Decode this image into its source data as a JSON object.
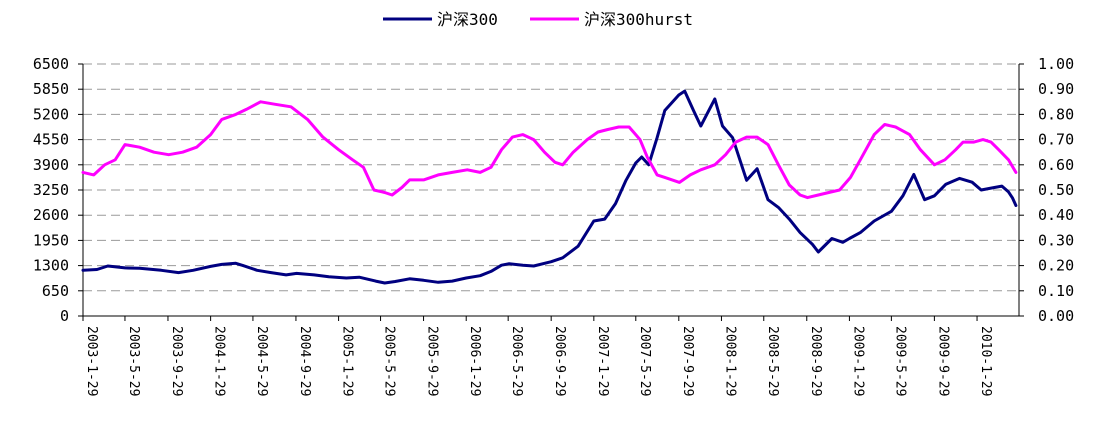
{
  "chart_data": {
    "type": "line",
    "title": "",
    "xlabel": "",
    "ylabel": "",
    "grid": true,
    "legend_position": "top-center",
    "x_tick_labels": [
      "2003-1-29",
      "2003-5-29",
      "2003-9-29",
      "2004-1-29",
      "2004-5-29",
      "2004-9-29",
      "2005-1-29",
      "2005-5-29",
      "2005-9-29",
      "2006-1-29",
      "2006-5-29",
      "2006-9-29",
      "2007-1-29",
      "2007-5-29",
      "2007-9-29",
      "2008-1-29",
      "2008-5-29",
      "2008-9-29",
      "2009-1-29",
      "2009-5-29",
      "2009-9-29",
      "2010-1-29"
    ],
    "y_left": {
      "ticks": [
        "0",
        "650",
        "1300",
        "1950",
        "2600",
        "3250",
        "3900",
        "4550",
        "5200",
        "5850",
        "6500"
      ],
      "ylim": [
        0,
        6500
      ]
    },
    "y_right": {
      "ticks": [
        "0.00",
        "0.10",
        "0.20",
        "0.30",
        "0.40",
        "0.50",
        "0.60",
        "0.70",
        "0.80",
        "0.90",
        "1.00"
      ],
      "ylim": [
        0,
        1.0
      ]
    },
    "series": [
      {
        "name": "沪深300",
        "axis": "left",
        "color": "#000080",
        "points": [
          [
            "2003-01-29",
            1180
          ],
          [
            "2003-03-10",
            1200
          ],
          [
            "2003-04-10",
            1290
          ],
          [
            "2003-05-29",
            1240
          ],
          [
            "2003-07-10",
            1230
          ],
          [
            "2003-09-10",
            1180
          ],
          [
            "2003-10-29",
            1120
          ],
          [
            "2003-12-10",
            1180
          ],
          [
            "2004-01-29",
            1280
          ],
          [
            "2004-03-01",
            1330
          ],
          [
            "2004-04-10",
            1360
          ],
          [
            "2004-05-01",
            1300
          ],
          [
            "2004-06-10",
            1180
          ],
          [
            "2004-07-20",
            1120
          ],
          [
            "2004-09-01",
            1060
          ],
          [
            "2004-10-01",
            1100
          ],
          [
            "2004-11-20",
            1060
          ],
          [
            "2005-01-01",
            1010
          ],
          [
            "2005-02-20",
            980
          ],
          [
            "2005-03-29",
            1000
          ],
          [
            "2005-05-15",
            900
          ],
          [
            "2005-06-10",
            850
          ],
          [
            "2005-07-10",
            890
          ],
          [
            "2005-08-20",
            960
          ],
          [
            "2005-09-29",
            920
          ],
          [
            "2005-11-10",
            870
          ],
          [
            "2005-12-20",
            900
          ],
          [
            "2006-01-29",
            980
          ],
          [
            "2006-03-10",
            1040
          ],
          [
            "2006-04-10",
            1150
          ],
          [
            "2006-05-10",
            1310
          ],
          [
            "2006-06-01",
            1350
          ],
          [
            "2006-07-10",
            1310
          ],
          [
            "2006-08-10",
            1290
          ],
          [
            "2006-09-29",
            1400
          ],
          [
            "2006-11-01",
            1500
          ],
          [
            "2006-12-15",
            1800
          ],
          [
            "2007-01-29",
            2450
          ],
          [
            "2007-03-01",
            2500
          ],
          [
            "2007-04-01",
            2900
          ],
          [
            "2007-05-01",
            3500
          ],
          [
            "2007-05-29",
            3950
          ],
          [
            "2007-06-15",
            4100
          ],
          [
            "2007-07-05",
            3900
          ],
          [
            "2007-07-29",
            4600
          ],
          [
            "2007-08-20",
            5300
          ],
          [
            "2007-09-29",
            5700
          ],
          [
            "2007-10-16",
            5800
          ],
          [
            "2007-11-10",
            5300
          ],
          [
            "2007-12-01",
            4900
          ],
          [
            "2008-01-10",
            5600
          ],
          [
            "2008-02-01",
            4900
          ],
          [
            "2008-03-01",
            4600
          ],
          [
            "2008-04-10",
            3500
          ],
          [
            "2008-05-10",
            3800
          ],
          [
            "2008-06-10",
            3000
          ],
          [
            "2008-07-10",
            2800
          ],
          [
            "2008-08-10",
            2500
          ],
          [
            "2008-09-10",
            2150
          ],
          [
            "2008-10-15",
            1850
          ],
          [
            "2008-11-01",
            1650
          ],
          [
            "2008-12-10",
            2000
          ],
          [
            "2009-01-10",
            1900
          ],
          [
            "2009-01-29",
            2000
          ],
          [
            "2009-03-01",
            2150
          ],
          [
            "2009-04-10",
            2450
          ],
          [
            "2009-05-29",
            2700
          ],
          [
            "2009-07-01",
            3100
          ],
          [
            "2009-08-01",
            3650
          ],
          [
            "2009-09-01",
            3000
          ],
          [
            "2009-09-29",
            3100
          ],
          [
            "2009-11-01",
            3400
          ],
          [
            "2009-12-10",
            3550
          ],
          [
            "2010-01-15",
            3450
          ],
          [
            "2010-02-10",
            3250
          ],
          [
            "2010-03-10",
            3300
          ],
          [
            "2010-04-10",
            3350
          ],
          [
            "2010-04-29",
            3200
          ],
          [
            "2010-05-10",
            3050
          ],
          [
            "2010-05-20",
            2850
          ]
        ]
      },
      {
        "name": "沪深300hurst",
        "axis": "right",
        "color": "#ff00ff",
        "points": [
          [
            "2003-01-29",
            0.57
          ],
          [
            "2003-03-01",
            0.56
          ],
          [
            "2003-04-01",
            0.6
          ],
          [
            "2003-05-01",
            0.62
          ],
          [
            "2003-05-29",
            0.68
          ],
          [
            "2003-07-10",
            0.67
          ],
          [
            "2003-08-20",
            0.65
          ],
          [
            "2003-10-01",
            0.64
          ],
          [
            "2003-11-10",
            0.65
          ],
          [
            "2003-12-20",
            0.67
          ],
          [
            "2004-01-29",
            0.72
          ],
          [
            "2004-03-01",
            0.78
          ],
          [
            "2004-04-10",
            0.8
          ],
          [
            "2004-05-10",
            0.82
          ],
          [
            "2004-06-20",
            0.85
          ],
          [
            "2004-08-01",
            0.84
          ],
          [
            "2004-09-15",
            0.83
          ],
          [
            "2004-11-01",
            0.78
          ],
          [
            "2004-12-15",
            0.71
          ],
          [
            "2005-01-29",
            0.66
          ],
          [
            "2005-03-10",
            0.62
          ],
          [
            "2005-04-10",
            0.59
          ],
          [
            "2005-05-10",
            0.5
          ],
          [
            "2005-06-10",
            0.49
          ],
          [
            "2005-07-01",
            0.48
          ],
          [
            "2005-07-29",
            0.51
          ],
          [
            "2005-08-20",
            0.54
          ],
          [
            "2005-09-29",
            0.54
          ],
          [
            "2005-11-10",
            0.56
          ],
          [
            "2005-12-20",
            0.57
          ],
          [
            "2006-02-01",
            0.58
          ],
          [
            "2006-03-10",
            0.57
          ],
          [
            "2006-04-10",
            0.59
          ],
          [
            "2006-05-10",
            0.66
          ],
          [
            "2006-06-10",
            0.71
          ],
          [
            "2006-07-10",
            0.72
          ],
          [
            "2006-08-10",
            0.7
          ],
          [
            "2006-09-10",
            0.65
          ],
          [
            "2006-10-10",
            0.61
          ],
          [
            "2006-11-01",
            0.6
          ],
          [
            "2006-12-01",
            0.65
          ],
          [
            "2007-01-10",
            0.7
          ],
          [
            "2007-02-10",
            0.73
          ],
          [
            "2007-03-10",
            0.74
          ],
          [
            "2007-04-10",
            0.75
          ],
          [
            "2007-05-10",
            0.75
          ],
          [
            "2007-06-10",
            0.7
          ],
          [
            "2007-07-01",
            0.63
          ],
          [
            "2007-07-29",
            0.56
          ],
          [
            "2007-08-20",
            0.55
          ],
          [
            "2007-10-01",
            0.53
          ],
          [
            "2007-11-01",
            0.56
          ],
          [
            "2007-12-01",
            0.58
          ],
          [
            "2008-01-10",
            0.6
          ],
          [
            "2008-02-10",
            0.64
          ],
          [
            "2008-03-10",
            0.69
          ],
          [
            "2008-04-10",
            0.71
          ],
          [
            "2008-05-10",
            0.71
          ],
          [
            "2008-06-10",
            0.68
          ],
          [
            "2008-07-10",
            0.6
          ],
          [
            "2008-08-10",
            0.52
          ],
          [
            "2008-09-10",
            0.48
          ],
          [
            "2008-10-01",
            0.47
          ],
          [
            "2008-11-01",
            0.48
          ],
          [
            "2008-12-01",
            0.49
          ],
          [
            "2009-01-01",
            0.5
          ],
          [
            "2009-02-01",
            0.55
          ],
          [
            "2009-03-01",
            0.62
          ],
          [
            "2009-04-10",
            0.72
          ],
          [
            "2009-05-10",
            0.76
          ],
          [
            "2009-06-10",
            0.75
          ],
          [
            "2009-07-20",
            0.72
          ],
          [
            "2009-08-20",
            0.66
          ],
          [
            "2009-09-29",
            0.6
          ],
          [
            "2009-10-29",
            0.62
          ],
          [
            "2009-11-29",
            0.66
          ],
          [
            "2009-12-20",
            0.69
          ],
          [
            "2010-01-20",
            0.69
          ],
          [
            "2010-02-15",
            0.7
          ],
          [
            "2010-03-10",
            0.69
          ],
          [
            "2010-04-01",
            0.66
          ],
          [
            "2010-04-29",
            0.62
          ],
          [
            "2010-05-20",
            0.57
          ]
        ]
      }
    ]
  }
}
